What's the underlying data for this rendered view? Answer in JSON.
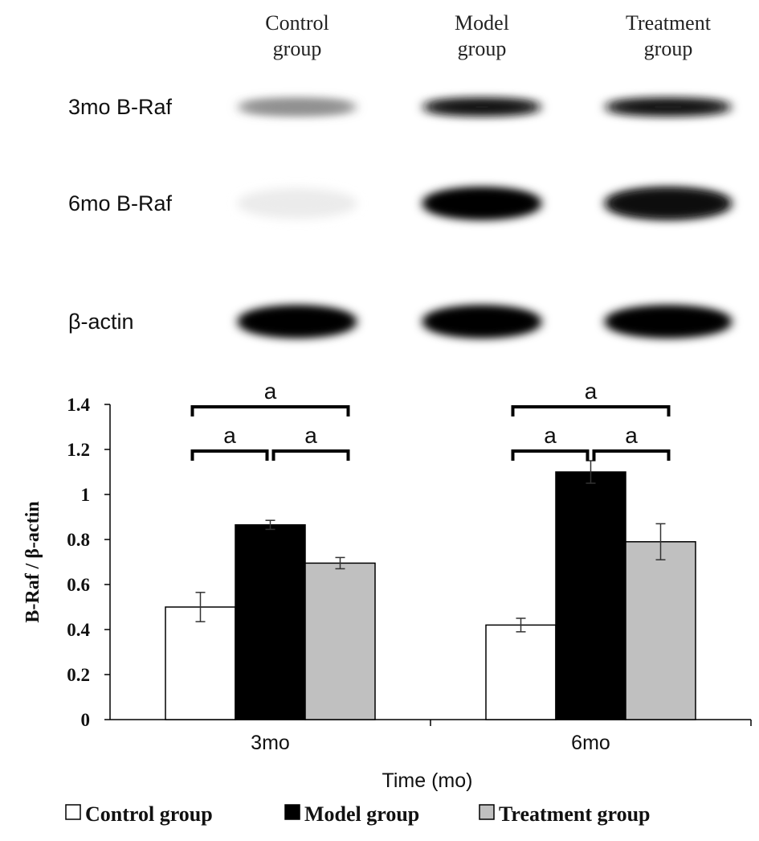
{
  "blot": {
    "lanes": [
      "Control\ngroup",
      "Model\ngroup",
      "Treatment\ngroup"
    ],
    "rows": [
      {
        "label": "3mo B-Raf",
        "intensity": [
          0.45,
          0.95,
          0.92
        ]
      },
      {
        "label": "6mo B-Raf",
        "intensity": [
          0.08,
          1.0,
          0.96
        ]
      },
      {
        "label": "β-actin",
        "intensity": [
          1.0,
          1.0,
          1.0
        ]
      }
    ]
  },
  "chart_data": {
    "type": "bar",
    "categories": [
      "3mo",
      "6mo"
    ],
    "series": [
      {
        "name": "Control group",
        "color": "#ffffff",
        "values": [
          0.5,
          0.42
        ],
        "errors": [
          0.065,
          0.03
        ]
      },
      {
        "name": "Model group",
        "color": "#000000",
        "values": [
          0.865,
          1.1
        ],
        "errors": [
          0.02,
          0.05
        ]
      },
      {
        "name": "Treatment group",
        "color": "#c0c0c0",
        "values": [
          0.695,
          0.79
        ],
        "errors": [
          0.025,
          0.08
        ]
      }
    ],
    "xlabel": "Time (mo)",
    "ylabel": "B-Raf / β-actin",
    "ylim": [
      0,
      1.4
    ],
    "yticks": [
      "0",
      "0.2",
      "0.4",
      "0.6",
      "0.8",
      "1",
      "1.2",
      "1.4"
    ],
    "significance": [
      {
        "category": 0,
        "from": 0,
        "to": 1,
        "label": "a",
        "level": 1
      },
      {
        "category": 0,
        "from": 1,
        "to": 2,
        "label": "a",
        "level": 1
      },
      {
        "category": 0,
        "from": 0,
        "to": 2,
        "label": "a",
        "level": 2
      },
      {
        "category": 1,
        "from": 0,
        "to": 1,
        "label": "a",
        "level": 1
      },
      {
        "category": 1,
        "from": 1,
        "to": 2,
        "label": "a",
        "level": 1
      },
      {
        "category": 1,
        "from": 0,
        "to": 2,
        "label": "a",
        "level": 2
      }
    ],
    "legend_position": "bottom",
    "grid": false
  }
}
